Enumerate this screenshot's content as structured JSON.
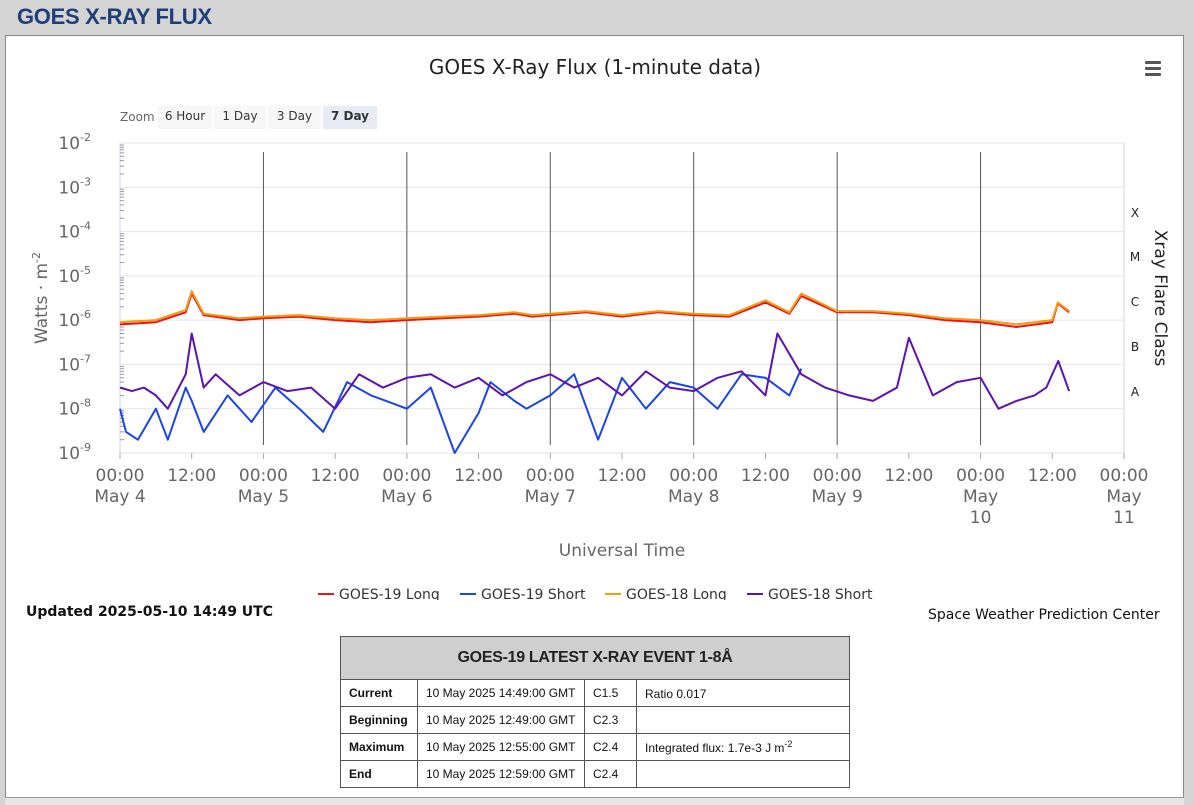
{
  "header": {
    "title": "GOES X-RAY FLUX"
  },
  "chart": {
    "title": "GOES X-Ray Flux (1-minute data)"
  },
  "zoom": {
    "label": "Zoom",
    "buttons": [
      "6 Hour",
      "1 Day",
      "3 Day",
      "7 Day"
    ],
    "active": "7 Day"
  },
  "menu": {
    "icon": "hamburger-menu-icon"
  },
  "updated": "Updated 2025-05-10 14:49 UTC",
  "credit": "Space Weather Prediction Center",
  "event_table": {
    "title": "GOES-19 LATEST X-RAY EVENT 1-8Å",
    "rows": [
      {
        "name": "Current",
        "time": "10 May 2025 14:49:00 GMT",
        "class": "C1.5",
        "note": "Ratio 0.017",
        "note_sup": ""
      },
      {
        "name": "Beginning",
        "time": "10 May 2025 12:49:00 GMT",
        "class": "C2.3",
        "note": "",
        "note_sup": ""
      },
      {
        "name": "Maximum",
        "time": "10 May 2025 12:55:00 GMT",
        "class": "C2.4",
        "note": "Integrated flux: 1.7e-3 J m",
        "note_sup": "-2"
      },
      {
        "name": "End",
        "time": "10 May 2025 12:59:00 GMT",
        "class": "C2.4",
        "note": "",
        "note_sup": ""
      }
    ]
  },
  "chart_data": {
    "type": "line",
    "title": "GOES X-Ray Flux (1-minute data)",
    "xlabel": "Universal Time",
    "ylabel": "Watts · m",
    "ylabel_sup": "-2",
    "y_scale": "log",
    "ylim": [
      1e-09,
      0.01
    ],
    "y_ticks": [
      {
        "base": "10",
        "exp": "-9"
      },
      {
        "base": "10",
        "exp": "-8"
      },
      {
        "base": "10",
        "exp": "-7"
      },
      {
        "base": "10",
        "exp": "-6"
      },
      {
        "base": "10",
        "exp": "-5"
      },
      {
        "base": "10",
        "exp": "-4"
      },
      {
        "base": "10",
        "exp": "-3"
      },
      {
        "base": "10",
        "exp": "-2"
      }
    ],
    "xlim": [
      "2025-05-04 00:00",
      "2025-05-11 00:00"
    ],
    "x_ticks": [
      {
        "line1": "00:00",
        "line2": "May 4"
      },
      {
        "line1": "12:00",
        "line2": ""
      },
      {
        "line1": "00:00",
        "line2": "May 5"
      },
      {
        "line1": "12:00",
        "line2": ""
      },
      {
        "line1": "00:00",
        "line2": "May 6"
      },
      {
        "line1": "12:00",
        "line2": ""
      },
      {
        "line1": "00:00",
        "line2": "May 7"
      },
      {
        "line1": "12:00",
        "line2": ""
      },
      {
        "line1": "00:00",
        "line2": "May 8"
      },
      {
        "line1": "12:00",
        "line2": ""
      },
      {
        "line1": "00:00",
        "line2": "May 9"
      },
      {
        "line1": "12:00",
        "line2": ""
      },
      {
        "line1": "00:00",
        "line2": "May",
        "line3": "10"
      },
      {
        "line1": "12:00",
        "line2": ""
      },
      {
        "line1": "00:00",
        "line2": "May",
        "line3": "11"
      }
    ],
    "right_axis": {
      "title": "Xray Flare Class",
      "classes": [
        "X",
        "M",
        "C",
        "B",
        "A"
      ]
    },
    "legend_position": "bottom",
    "grid": true,
    "series": [
      {
        "name": "GOES-19 Long",
        "color": "#e8151b",
        "x": [
          "2025-05-04 00:00",
          "2025-05-04 06:00",
          "2025-05-04 11:00",
          "2025-05-04 12:00",
          "2025-05-04 14:00",
          "2025-05-04 20:00",
          "2025-05-05 00:00",
          "2025-05-05 06:00",
          "2025-05-05 12:00",
          "2025-05-05 18:00",
          "2025-05-06 00:00",
          "2025-05-06 06:00",
          "2025-05-06 12:00",
          "2025-05-06 18:00",
          "2025-05-06 21:00",
          "2025-05-07 00:00",
          "2025-05-07 06:00",
          "2025-05-07 12:00",
          "2025-05-07 18:00",
          "2025-05-08 00:00",
          "2025-05-08 06:00",
          "2025-05-08 12:00",
          "2025-05-08 16:00",
          "2025-05-08 18:00",
          "2025-05-09 00:00",
          "2025-05-09 06:00",
          "2025-05-09 12:00",
          "2025-05-09 18:00",
          "2025-05-10 00:00",
          "2025-05-10 06:00",
          "2025-05-10 12:00",
          "2025-05-10 12:55",
          "2025-05-10 14:49"
        ],
        "y": [
          8e-07,
          9e-07,
          1.5e-06,
          4e-06,
          1.3e-06,
          1e-06,
          1.1e-06,
          1.2e-06,
          1e-06,
          9e-07,
          1e-06,
          1.1e-06,
          1.2e-06,
          1.4e-06,
          1.2e-06,
          1.3e-06,
          1.5e-06,
          1.2e-06,
          1.5e-06,
          1.3e-06,
          1.2e-06,
          2.5e-06,
          1.4e-06,
          3.5e-06,
          1.5e-06,
          1.5e-06,
          1.3e-06,
          1e-06,
          9e-07,
          7e-07,
          9e-07,
          2.4e-06,
          1.5e-06
        ]
      },
      {
        "name": "GOES-19 Short",
        "color": "#1a46e6",
        "x": [
          "2025-05-04 00:00",
          "2025-05-04 01:00",
          "2025-05-04 03:00",
          "2025-05-04 06:00",
          "2025-05-04 08:00",
          "2025-05-04 11:00",
          "2025-05-04 12:00",
          "2025-05-04 14:00",
          "2025-05-04 18:00",
          "2025-05-04 22:00",
          "2025-05-05 02:00",
          "2025-05-05 06:00",
          "2025-05-05 10:00",
          "2025-05-05 14:00",
          "2025-05-05 18:00",
          "2025-05-06 00:00",
          "2025-05-06 04:00",
          "2025-05-06 08:00",
          "2025-05-06 12:00",
          "2025-05-06 14:00",
          "2025-05-06 18:00",
          "2025-05-06 20:00",
          "2025-05-07 00:00",
          "2025-05-07 04:00",
          "2025-05-07 08:00",
          "2025-05-07 12:00",
          "2025-05-07 16:00",
          "2025-05-07 20:00",
          "2025-05-08 00:00",
          "2025-05-08 04:00",
          "2025-05-08 08:00",
          "2025-05-08 12:00",
          "2025-05-08 16:00",
          "2025-05-08 18:00"
        ],
        "y": [
          1e-08,
          3e-09,
          2e-09,
          1e-08,
          2e-09,
          3e-08,
          1.5e-08,
          3e-09,
          2e-08,
          5e-09,
          3e-08,
          1e-08,
          3e-09,
          4e-08,
          2e-08,
          1e-08,
          3e-08,
          1e-09,
          8e-09,
          4e-08,
          1.5e-08,
          1e-08,
          2e-08,
          6e-08,
          2e-09,
          5e-08,
          1e-08,
          4e-08,
          3e-08,
          1e-08,
          6e-08,
          5e-08,
          2e-08,
          8e-08
        ]
      },
      {
        "name": "GOES-18 Long",
        "color": "#f59a11",
        "x": [
          "2025-05-04 00:00",
          "2025-05-04 06:00",
          "2025-05-04 11:00",
          "2025-05-04 12:00",
          "2025-05-04 14:00",
          "2025-05-04 20:00",
          "2025-05-05 00:00",
          "2025-05-05 06:00",
          "2025-05-05 12:00",
          "2025-05-05 18:00",
          "2025-05-06 00:00",
          "2025-05-06 06:00",
          "2025-05-06 12:00",
          "2025-05-06 18:00",
          "2025-05-06 21:00",
          "2025-05-07 00:00",
          "2025-05-07 06:00",
          "2025-05-07 12:00",
          "2025-05-07 18:00",
          "2025-05-08 00:00",
          "2025-05-08 06:00",
          "2025-05-08 12:00",
          "2025-05-08 16:00",
          "2025-05-08 18:00",
          "2025-05-09 00:00",
          "2025-05-09 06:00",
          "2025-05-09 12:00",
          "2025-05-09 18:00",
          "2025-05-10 00:00",
          "2025-05-10 06:00",
          "2025-05-10 12:00",
          "2025-05-10 12:55",
          "2025-05-10 14:49"
        ],
        "y": [
          9e-07,
          1e-06,
          1.7e-06,
          4.5e-06,
          1.4e-06,
          1.1e-06,
          1.2e-06,
          1.3e-06,
          1.1e-06,
          1e-06,
          1.1e-06,
          1.2e-06,
          1.3e-06,
          1.5e-06,
          1.3e-06,
          1.4e-06,
          1.6e-06,
          1.3e-06,
          1.6e-06,
          1.4e-06,
          1.3e-06,
          2.8e-06,
          1.5e-06,
          4e-06,
          1.6e-06,
          1.6e-06,
          1.4e-06,
          1.1e-06,
          1e-06,
          8e-07,
          1e-06,
          2.5e-06,
          1.6e-06
        ]
      },
      {
        "name": "GOES-18 Short",
        "color": "#5e12b0",
        "x": [
          "2025-05-04 00:00",
          "2025-05-04 02:00",
          "2025-05-04 04:00",
          "2025-05-04 06:00",
          "2025-05-04 08:00",
          "2025-05-04 11:00",
          "2025-05-04 12:00",
          "2025-05-04 14:00",
          "2025-05-04 16:00",
          "2025-05-04 20:00",
          "2025-05-05 00:00",
          "2025-05-05 04:00",
          "2025-05-05 08:00",
          "2025-05-05 12:00",
          "2025-05-05 16:00",
          "2025-05-05 20:00",
          "2025-05-06 00:00",
          "2025-05-06 04:00",
          "2025-05-06 08:00",
          "2025-05-06 12:00",
          "2025-05-06 16:00",
          "2025-05-06 20:00",
          "2025-05-07 00:00",
          "2025-05-07 04:00",
          "2025-05-07 08:00",
          "2025-05-07 12:00",
          "2025-05-07 16:00",
          "2025-05-07 20:00",
          "2025-05-08 00:00",
          "2025-05-08 04:00",
          "2025-05-08 08:00",
          "2025-05-08 12:00",
          "2025-05-08 14:00",
          "2025-05-08 18:00",
          "2025-05-08 22:00",
          "2025-05-09 02:00",
          "2025-05-09 06:00",
          "2025-05-09 10:00",
          "2025-05-09 12:00",
          "2025-05-09 16:00",
          "2025-05-09 20:00",
          "2025-05-10 00:00",
          "2025-05-10 03:00",
          "2025-05-10 06:00",
          "2025-05-10 09:00",
          "2025-05-10 11:00",
          "2025-05-10 13:00",
          "2025-05-10 14:49"
        ],
        "y": [
          3e-08,
          2.5e-08,
          3e-08,
          2e-08,
          1e-08,
          6e-08,
          5e-07,
          3e-08,
          6e-08,
          2e-08,
          4e-08,
          2.5e-08,
          3e-08,
          1e-08,
          6e-08,
          3e-08,
          5e-08,
          6e-08,
          3e-08,
          5e-08,
          2e-08,
          4e-08,
          6e-08,
          3e-08,
          5e-08,
          2e-08,
          7e-08,
          3e-08,
          2.5e-08,
          5e-08,
          7e-08,
          2e-08,
          5e-07,
          6e-08,
          3e-08,
          2e-08,
          1.5e-08,
          3e-08,
          4e-07,
          2e-08,
          4e-08,
          5e-08,
          1e-08,
          1.5e-08,
          2e-08,
          3e-08,
          1.2e-07,
          2.5e-08
        ]
      }
    ]
  }
}
